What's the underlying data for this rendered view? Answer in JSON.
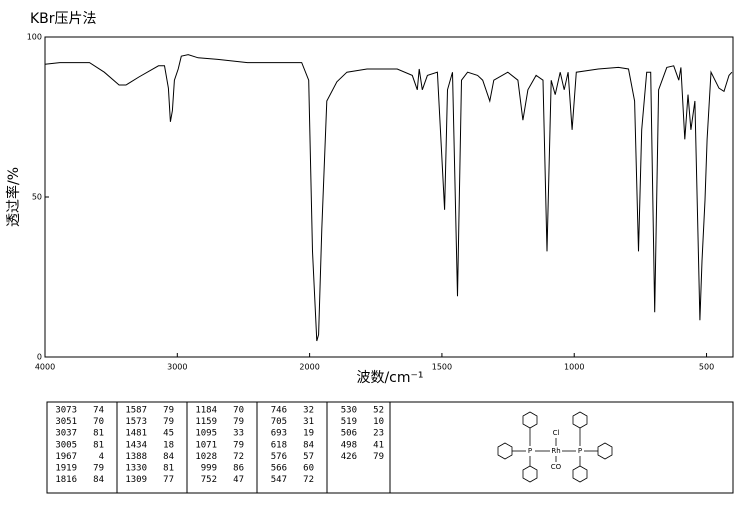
{
  "chart_data": {
    "type": "line",
    "title": "KBr压片法",
    "y_label": "透过率/%",
    "x_label": "波数/cm⁻¹",
    "xlim": [
      4000,
      400
    ],
    "x_scale_break": 2000,
    "xticks": [
      4000,
      3000,
      2000,
      1500,
      1000,
      500
    ],
    "ylim": [
      0,
      100
    ],
    "yticks": [
      0,
      50,
      100
    ],
    "color": "#000000",
    "x": [
      4000,
      3888,
      3664,
      3552,
      3440,
      3388,
      3290,
      3142,
      3097,
      3067,
      3052,
      3037,
      3022,
      2993,
      2970,
      2918,
      2843,
      2694,
      2470,
      2060,
      2007,
      1989,
      1973,
      1966,
      1954,
      1935,
      1897,
      1859,
      1783,
      1669,
      1612,
      1593,
      1586,
      1574,
      1555,
      1517,
      1490,
      1479,
      1460,
      1441,
      1426,
      1403,
      1365,
      1346,
      1319,
      1304,
      1251,
      1213,
      1194,
      1175,
      1144,
      1118,
      1103,
      1087,
      1072,
      1053,
      1038,
      1023,
      1008,
      992,
      909,
      833,
      795,
      772,
      757,
      745,
      726,
      711,
      696,
      681,
      650,
      624,
      605,
      597,
      582,
      570,
      559,
      544,
      532,
      525,
      517,
      506,
      498,
      483,
      453,
      434,
      415,
      404
    ],
    "values": [
      91.5,
      92,
      92,
      89,
      85,
      85,
      87.5,
      91,
      91,
      84,
      73.5,
      77,
      86.5,
      90,
      94,
      94.5,
      93.5,
      93,
      92,
      92,
      86.5,
      33,
      5,
      7,
      40,
      80,
      86,
      89,
      90,
      90,
      88,
      83.5,
      90,
      83.5,
      88,
      89,
      46,
      83.5,
      89,
      19,
      86.5,
      89,
      88,
      86.5,
      80,
      86.5,
      89,
      86.5,
      74,
      83.5,
      88,
      86.5,
      33,
      86.5,
      82,
      89,
      83.5,
      89,
      71,
      89,
      90,
      90.5,
      90,
      80,
      33,
      71,
      89,
      89,
      14,
      83.5,
      90.5,
      91,
      86.5,
      90.5,
      68,
      82,
      71,
      80,
      36.5,
      11.5,
      30,
      49,
      68,
      89,
      84,
      83,
      88,
      89
    ]
  },
  "peak_table": {
    "columns": [
      [
        [
          3073,
          74
        ],
        [
          3051,
          70
        ],
        [
          3037,
          81
        ],
        [
          3005,
          81
        ],
        [
          1967,
          4
        ],
        [
          1919,
          79
        ],
        [
          1816,
          84
        ]
      ],
      [
        [
          1587,
          79
        ],
        [
          1573,
          79
        ],
        [
          1481,
          45
        ],
        [
          1434,
          18
        ],
        [
          1388,
          84
        ],
        [
          1330,
          81
        ],
        [
          1309,
          77
        ]
      ],
      [
        [
          1184,
          70
        ],
        [
          1159,
          79
        ],
        [
          1095,
          33
        ],
        [
          1071,
          79
        ],
        [
          1028,
          72
        ],
        [
          999,
          86
        ],
        [
          752,
          47
        ]
      ],
      [
        [
          746,
          32
        ],
        [
          705,
          31
        ],
        [
          693,
          19
        ],
        [
          618,
          84
        ],
        [
          576,
          57
        ],
        [
          566,
          60
        ],
        [
          547,
          72
        ]
      ],
      [
        [
          530,
          52
        ],
        [
          519,
          10
        ],
        [
          506,
          23
        ],
        [
          498,
          41
        ],
        [
          426,
          79
        ]
      ]
    ]
  },
  "structure": {
    "labels": [
      "Cl",
      "Rh",
      "CO",
      "P",
      "P"
    ]
  }
}
